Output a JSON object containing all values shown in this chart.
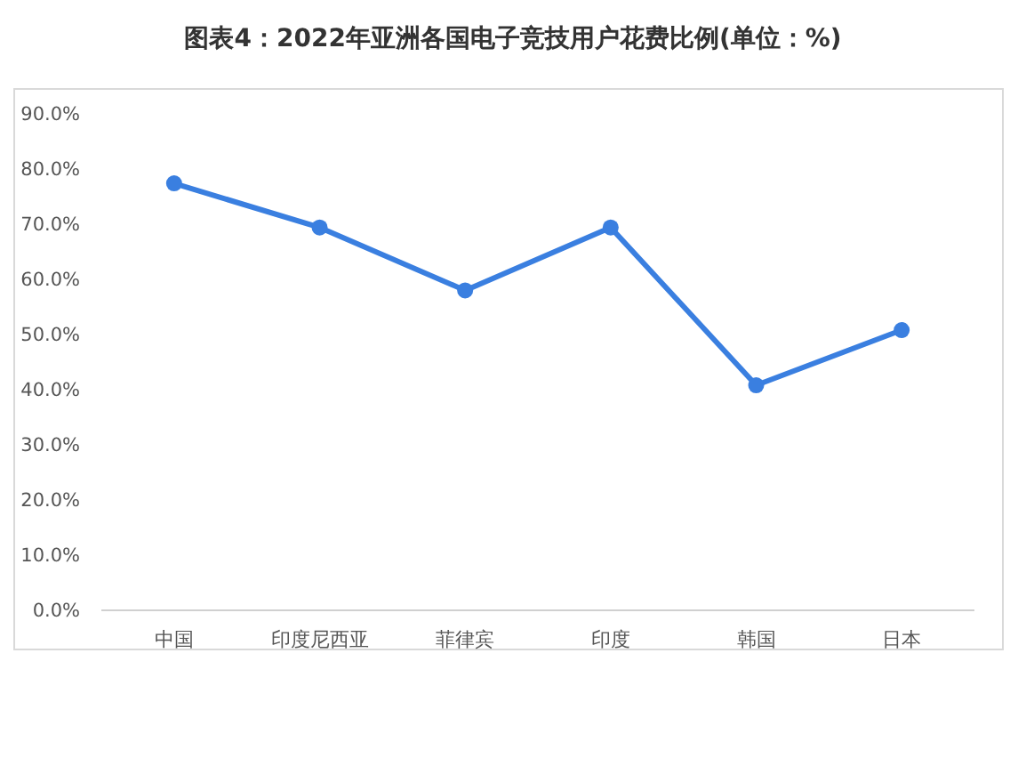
{
  "chart_data": {
    "type": "line",
    "title": "图表4：2022年亚洲各国电子竞技用户花费比例(单位：%)",
    "categories": [
      "中国",
      "印度尼西亚",
      "菲律宾",
      "印度",
      "韩国",
      "日本"
    ],
    "series": [
      {
        "color": "#3a7fe0",
        "values": [
          77.4,
          69.4,
          58.0,
          69.4,
          40.8,
          50.8
        ]
      }
    ],
    "ylim": [
      0,
      90
    ],
    "yticks": [
      {
        "value": 0,
        "label": "0.0%"
      },
      {
        "value": 10,
        "label": "10.0%"
      },
      {
        "value": 20,
        "label": "20.0%"
      },
      {
        "value": 30,
        "label": "30.0%"
      },
      {
        "value": 40,
        "label": "40.0%"
      },
      {
        "value": 50,
        "label": "50.0%"
      },
      {
        "value": 60,
        "label": "60.0%"
      },
      {
        "value": 70,
        "label": "70.0%"
      },
      {
        "value": 80,
        "label": "80.0%"
      },
      {
        "value": 90,
        "label": "90.0%"
      }
    ],
    "grid": false,
    "marker": "circle",
    "line_style": "solid"
  }
}
